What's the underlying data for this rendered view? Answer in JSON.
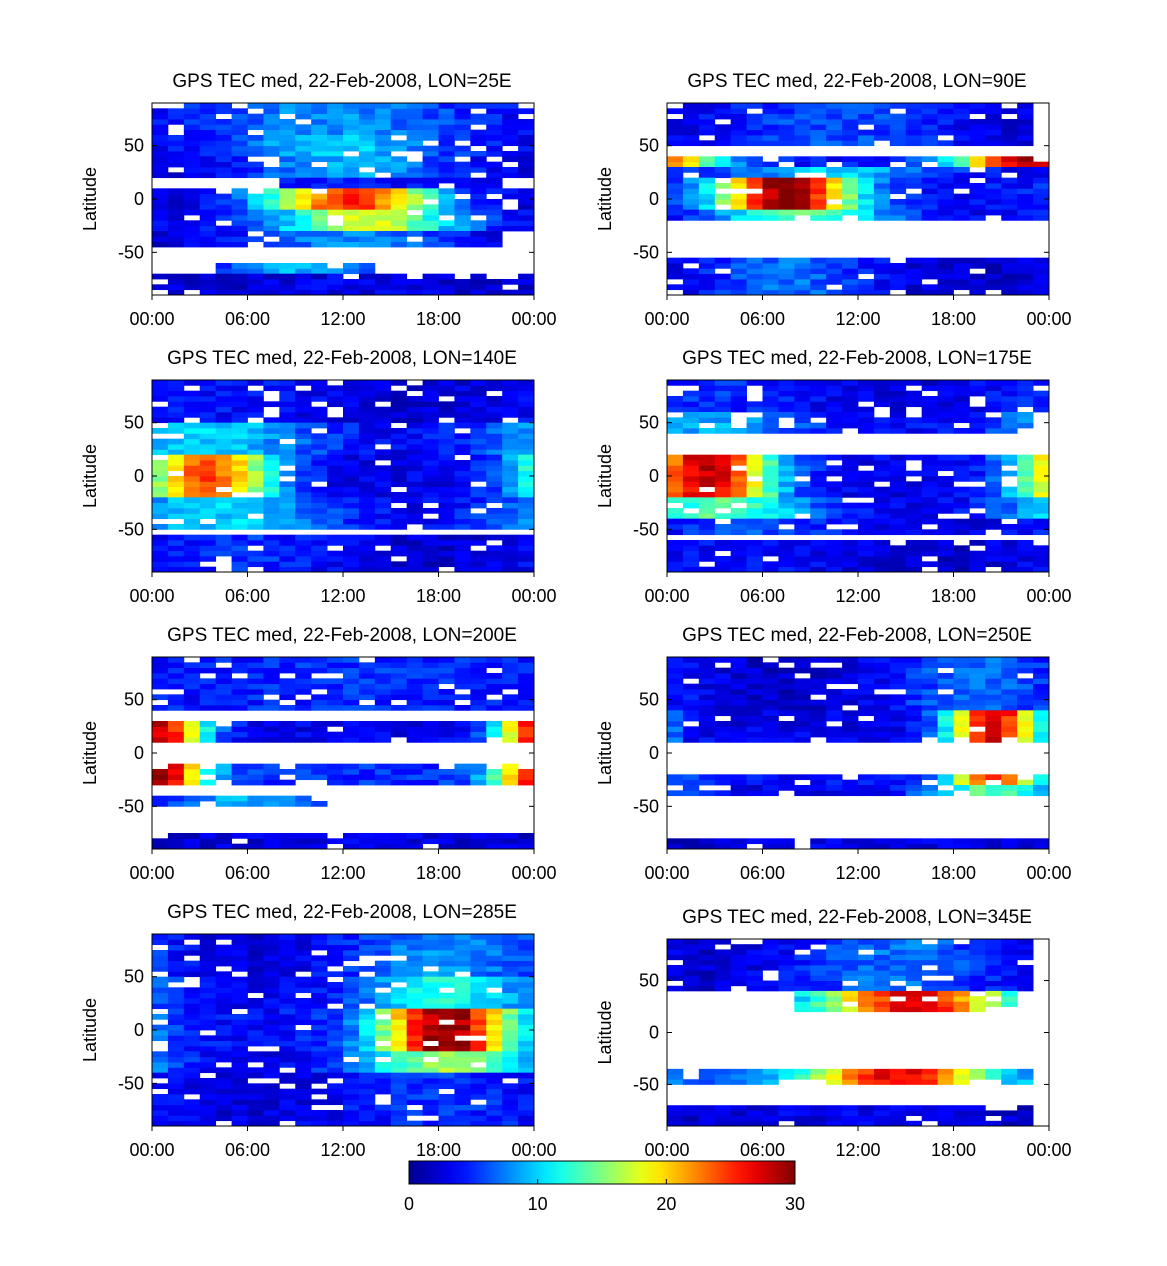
{
  "chart_data": {
    "type": "heatmap",
    "colorbar": {
      "ticks": [
        "0",
        "10",
        "20",
        "30"
      ],
      "range": [
        0,
        30
      ],
      "colormap": [
        "#00008f",
        "#0000ff",
        "#00ffff",
        "#ffff00",
        "#ff0000",
        "#800000"
      ]
    },
    "panels": [
      {
        "title": "GPS TEC med, 22-Feb-2008, LON=25E",
        "ylabel": "Latitude",
        "yticks": [
          "50",
          "0",
          "-50"
        ],
        "xticks": [
          "00:00",
          "06:00",
          "12:00",
          "18:00",
          "00:00"
        ],
        "ylim": [
          -90,
          90
        ],
        "xlim": [
          0,
          24
        ],
        "hour_range": [
          0,
          23
        ],
        "lat_bands": [
          {
            "lat": [
              60,
              90
            ],
            "start": 0,
            "end": 23,
            "center": 11,
            "peak": 8,
            "width": 6,
            "base": 3
          },
          {
            "lat": [
              40,
              60
            ],
            "start": 0,
            "end": 23,
            "center": 11,
            "peak": 10,
            "width": 5,
            "base": 3
          },
          {
            "lat": [
              20,
              40
            ],
            "start": 0,
            "end": 23,
            "center": 12,
            "peak": 9,
            "width": 5,
            "base": 2
          },
          {
            "lat": [
              10,
              20
            ],
            "start": 8,
            "end": 21,
            "center": 12,
            "peak": 5,
            "width": 4,
            "base": 2
          },
          {
            "lat": [
              -10,
              10
            ],
            "start": 0,
            "end": 23,
            "center": 12,
            "peak": 25,
            "width": 4,
            "base": 2
          },
          {
            "lat": [
              -30,
              -10
            ],
            "start": 0,
            "end": 23,
            "center": 13,
            "peak": 18,
            "width": 4,
            "base": 3
          },
          {
            "lat": [
              -45,
              -30
            ],
            "start": 0,
            "end": 21,
            "center": 12,
            "peak": 8,
            "width": 5,
            "base": 2
          },
          {
            "lat": [
              -70,
              -60
            ],
            "start": 4,
            "end": 13,
            "center": 9,
            "peak": 9,
            "width": 3,
            "base": 4
          },
          {
            "lat": [
              -90,
              -70
            ],
            "start": 0,
            "end": 23,
            "center": 12,
            "peak": 3,
            "width": 6,
            "base": 2
          }
        ]
      },
      {
        "title": "GPS TEC med, 22-Feb-2008, LON=90E",
        "ylabel": "Latitude",
        "yticks": [
          "50",
          "0",
          "-50"
        ],
        "xticks": [
          "00:00",
          "06:00",
          "12:00",
          "18:00",
          "00:00"
        ],
        "ylim": [
          -90,
          90
        ],
        "xlim": [
          0,
          24
        ],
        "hour_range": [
          0,
          23
        ],
        "lat_bands": [
          {
            "lat": [
              50,
              90
            ],
            "start": 0,
            "end": 22,
            "center": 10,
            "peak": 6,
            "width": 6,
            "base": 2
          },
          {
            "lat": [
              30,
              40
            ],
            "start": 0,
            "end": 23,
            "center": 22,
            "peak": 28,
            "width": 3,
            "base": 4
          },
          {
            "lat": [
              20,
              30
            ],
            "start": 0,
            "end": 23,
            "center": 10,
            "peak": 10,
            "width": 5,
            "base": 3
          },
          {
            "lat": [
              -10,
              20
            ],
            "start": 0,
            "end": 23,
            "center": 7,
            "peak": 30,
            "width": 3,
            "base": 4
          },
          {
            "lat": [
              -20,
              -10
            ],
            "start": 0,
            "end": 23,
            "center": 8,
            "peak": 14,
            "width": 4,
            "base": 3
          },
          {
            "lat": [
              -90,
              -55
            ],
            "start": 0,
            "end": 23,
            "center": 7,
            "peak": 7,
            "width": 4,
            "base": 2
          }
        ]
      },
      {
        "title": "GPS TEC med, 22-Feb-2008, LON=140E",
        "ylabel": "Latitude",
        "yticks": [
          "50",
          "0",
          "-50"
        ],
        "xticks": [
          "00:00",
          "06:00",
          "12:00",
          "18:00",
          "00:00"
        ],
        "ylim": [
          -90,
          90
        ],
        "xlim": [
          0,
          24
        ],
        "hour_range": [
          0,
          23
        ],
        "lat_bands": [
          {
            "lat": [
              50,
              90
            ],
            "start": 0,
            "end": 23,
            "center": 4,
            "peak": 4,
            "width": 6,
            "base": 2
          },
          {
            "lat": [
              20,
              50
            ],
            "start": 0,
            "end": 23,
            "center": 3,
            "peak": 10,
            "width": 5,
            "base": 3
          },
          {
            "lat": [
              -20,
              20
            ],
            "start": 0,
            "end": 23,
            "center": 3,
            "peak": 24,
            "width": 3,
            "base": 3
          },
          {
            "lat": [
              -50,
              -20
            ],
            "start": 0,
            "end": 23,
            "center": 4,
            "peak": 10,
            "width": 5,
            "base": 3
          },
          {
            "lat": [
              -90,
              -55
            ],
            "start": 0,
            "end": 23,
            "center": 5,
            "peak": 5,
            "width": 5,
            "base": 2
          }
        ]
      },
      {
        "title": "GPS TEC med, 22-Feb-2008, LON=175E",
        "ylabel": "Latitude",
        "yticks": [
          "50",
          "0",
          "-50"
        ],
        "xticks": [
          "00:00",
          "06:00",
          "12:00",
          "18:00",
          "00:00"
        ],
        "ylim": [
          -90,
          90
        ],
        "xlim": [
          0,
          24
        ],
        "hour_range": [
          0,
          23
        ],
        "lat_bands": [
          {
            "lat": [
              60,
              90
            ],
            "start": 0,
            "end": 23,
            "center": 2,
            "peak": 5,
            "width": 6,
            "base": 2
          },
          {
            "lat": [
              40,
              60
            ],
            "start": 0,
            "end": 22,
            "center": 2,
            "peak": 9,
            "width": 5,
            "base": 3
          },
          {
            "lat": [
              -20,
              20
            ],
            "start": 0,
            "end": 23,
            "center": 2,
            "peak": 28,
            "width": 3,
            "base": 3
          },
          {
            "lat": [
              -40,
              -20
            ],
            "start": 0,
            "end": 23,
            "center": 3,
            "peak": 14,
            "width": 4,
            "base": 3
          },
          {
            "lat": [
              -55,
              -40
            ],
            "start": 0,
            "end": 23,
            "center": 5,
            "peak": 6,
            "width": 4,
            "base": 3
          },
          {
            "lat": [
              -90,
              -60
            ],
            "start": 0,
            "end": 23,
            "center": 4,
            "peak": 4,
            "width": 5,
            "base": 2
          }
        ]
      },
      {
        "title": "GPS TEC med, 22-Feb-2008, LON=200E",
        "ylabel": "Latitude",
        "yticks": [
          "50",
          "0",
          "-50"
        ],
        "xticks": [
          "00:00",
          "06:00",
          "12:00",
          "18:00",
          "00:00"
        ],
        "ylim": [
          -90,
          90
        ],
        "xlim": [
          0,
          24
        ],
        "hour_range": [
          0,
          23
        ],
        "lat_bands": [
          {
            "lat": [
              40,
              90
            ],
            "start": 0,
            "end": 23,
            "center": 12,
            "peak": 5,
            "width": 6,
            "base": 4
          },
          {
            "lat": [
              10,
              30
            ],
            "start": 0,
            "end": 23,
            "center": 0,
            "peak": 28,
            "width": 2,
            "base": 3
          },
          {
            "lat": [
              -30,
              -10
            ],
            "start": 0,
            "end": 23,
            "center": 0,
            "peak": 29,
            "width": 2,
            "base": 5
          },
          {
            "lat": [
              -50,
              -40
            ],
            "start": 0,
            "end": 10,
            "center": 6,
            "peak": 9,
            "width": 4,
            "base": 3
          },
          {
            "lat": [
              -90,
              -75
            ],
            "start": 0,
            "end": 23,
            "center": 12,
            "peak": 3,
            "width": 6,
            "base": 2
          }
        ]
      },
      {
        "title": "GPS TEC med, 22-Feb-2008, LON=250E",
        "ylabel": "Latitude",
        "yticks": [
          "50",
          "0",
          "-50"
        ],
        "xticks": [
          "00:00",
          "06:00",
          "12:00",
          "18:00",
          "00:00"
        ],
        "ylim": [
          -90,
          90
        ],
        "xlim": [
          0,
          24
        ],
        "hour_range": [
          0,
          23
        ],
        "lat_bands": [
          {
            "lat": [
              40,
              90
            ],
            "start": 0,
            "end": 23,
            "center": 19,
            "peak": 7,
            "width": 4,
            "base": 2
          },
          {
            "lat": [
              10,
              40
            ],
            "start": 0,
            "end": 23,
            "center": 20,
            "peak": 28,
            "width": 2,
            "base": 3
          },
          {
            "lat": [
              -30,
              -20
            ],
            "start": 0,
            "end": 23,
            "center": 20,
            "peak": 26,
            "width": 2,
            "base": 4
          },
          {
            "lat": [
              -40,
              -30
            ],
            "start": 0,
            "end": 23,
            "center": 20,
            "peak": 14,
            "width": 3,
            "base": 3
          },
          {
            "lat": [
              -90,
              -80
            ],
            "start": 0,
            "end": 23,
            "center": 12,
            "peak": 3,
            "width": 6,
            "base": 2
          }
        ]
      },
      {
        "title": "GPS TEC med, 22-Feb-2008, LON=285E",
        "ylabel": "Latitude",
        "yticks": [
          "50",
          "0",
          "-50"
        ],
        "xticks": [
          "00:00",
          "06:00",
          "12:00",
          "18:00",
          "00:00"
        ],
        "ylim": [
          -90,
          90
        ],
        "xlim": [
          0,
          24
        ],
        "hour_range": [
          0,
          23
        ],
        "lat_bands": [
          {
            "lat": [
              50,
              90
            ],
            "start": 0,
            "end": 23,
            "center": 18,
            "peak": 8,
            "width": 5,
            "base": 2
          },
          {
            "lat": [
              20,
              50
            ],
            "start": 0,
            "end": 23,
            "center": 18,
            "peak": 12,
            "width": 4,
            "base": 3
          },
          {
            "lat": [
              -20,
              20
            ],
            "start": 0,
            "end": 23,
            "center": 18,
            "peak": 30,
            "width": 3,
            "base": 4
          },
          {
            "lat": [
              -40,
              -20
            ],
            "start": 0,
            "end": 23,
            "center": 18,
            "peak": 16,
            "width": 4,
            "base": 3
          },
          {
            "lat": [
              -90,
              -40
            ],
            "start": 0,
            "end": 23,
            "center": 18,
            "peak": 5,
            "width": 6,
            "base": 2
          }
        ]
      },
      {
        "title": "GPS TEC med, 22-Feb-2008, LON=345E",
        "ylabel": "Latitude",
        "yticks": [
          "50",
          "0",
          "-50"
        ],
        "xticks": [
          "00:00",
          "06:00",
          "12:00",
          "18:00",
          "00:00"
        ],
        "ylim": [
          -90,
          90
        ],
        "xlim": [
          0,
          24
        ],
        "hour_range": [
          0,
          22
        ],
        "lat_bands": [
          {
            "lat": [
              40,
              90
            ],
            "start": 0,
            "end": 22,
            "center": 14,
            "peak": 7,
            "width": 5,
            "base": 2
          },
          {
            "lat": [
              20,
              40
            ],
            "start": 8,
            "end": 21,
            "center": 15,
            "peak": 27,
            "width": 4,
            "base": 6
          },
          {
            "lat": [
              -50,
              -35
            ],
            "start": 0,
            "end": 22,
            "center": 14,
            "peak": 27,
            "width": 4,
            "base": 6
          },
          {
            "lat": [
              -90,
              -70
            ],
            "start": 0,
            "end": 22,
            "center": 10,
            "peak": 3,
            "width": 6,
            "base": 2
          }
        ]
      }
    ]
  }
}
